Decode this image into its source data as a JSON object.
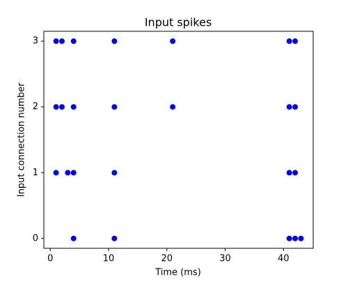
{
  "chart_data": {
    "type": "scatter",
    "title": "Input spikes",
    "xlabel": "Time (ms)",
    "ylabel": "Input connection number",
    "x": [
      1,
      2,
      4,
      11,
      21,
      41,
      42,
      1,
      2,
      4,
      11,
      21,
      41,
      42,
      1,
      3,
      4,
      11,
      41,
      42,
      4,
      11,
      41,
      42,
      43
    ],
    "values": [
      3,
      3,
      3,
      3,
      3,
      3,
      3,
      2,
      2,
      2,
      2,
      2,
      2,
      2,
      1,
      1,
      1,
      1,
      1,
      1,
      0,
      0,
      0,
      0,
      0
    ],
    "color": "#0000ff",
    "xlim": [
      -1.1,
      45.1
    ],
    "xticks": [
      0,
      10,
      20,
      30,
      40
    ],
    "ylim": [
      -0.15,
      3.15
    ],
    "yticks": [
      0,
      1,
      2,
      3
    ],
    "grid": false
  }
}
